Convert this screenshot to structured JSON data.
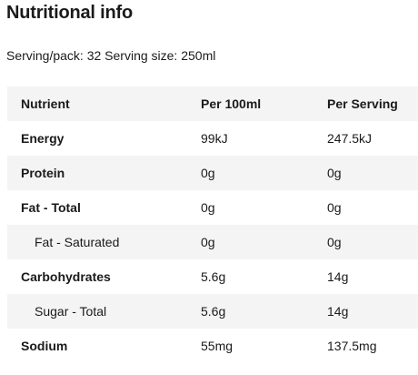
{
  "title": "Nutritional info",
  "serving_text": "Serving/pack: 32 Serving size: 250ml",
  "table": {
    "headers": [
      "Nutrient",
      "Per 100ml",
      "Per Serving"
    ],
    "rows": [
      {
        "nutrient": "Energy",
        "per_100ml": "99kJ",
        "per_serving": "247.5kJ"
      },
      {
        "nutrient": "Protein",
        "per_100ml": "0g",
        "per_serving": "0g"
      },
      {
        "nutrient": "Fat - Total",
        "per_100ml": "0g",
        "per_serving": "0g"
      },
      {
        "nutrient": "Fat - Saturated",
        "per_100ml": "0g",
        "per_serving": "0g"
      },
      {
        "nutrient": "Carbohydrates",
        "per_100ml": "5.6g",
        "per_serving": "14g"
      },
      {
        "nutrient": "Sugar - Total",
        "per_100ml": "5.6g",
        "per_serving": "14g"
      },
      {
        "nutrient": "Sodium",
        "per_100ml": "55mg",
        "per_serving": "137.5mg"
      }
    ]
  }
}
